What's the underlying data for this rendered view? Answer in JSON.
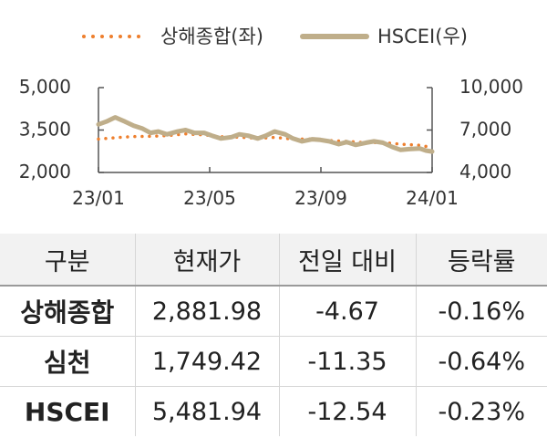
{
  "chart_data": {
    "type": "line",
    "legend": [
      "상해종합(좌)",
      "HSCEI(우)"
    ],
    "legend_position": "top",
    "x_ticks": [
      "23/01",
      "23/05",
      "23/09",
      "24/01"
    ],
    "x_range": [
      "2023-01-01",
      "2024-01-15"
    ],
    "y_left": {
      "ticks": [
        "2,000",
        "3,500",
        "5,000"
      ],
      "range": [
        2000,
        5000
      ]
    },
    "y_right": {
      "ticks": [
        "4,000",
        "7,000",
        "10,000"
      ],
      "range": [
        4000,
        10000
      ]
    },
    "series": [
      {
        "name": "상해종합(좌)",
        "axis": "left",
        "color": "#ee7f2d",
        "style": "dotted",
        "x": [
          "2023-01-01",
          "2023-01-20",
          "2023-02-10",
          "2023-03-01",
          "2023-03-20",
          "2023-04-10",
          "2023-05-01",
          "2023-05-20",
          "2023-06-10",
          "2023-07-01",
          "2023-07-20",
          "2023-08-10",
          "2023-09-01",
          "2023-09-20",
          "2023-10-10",
          "2023-11-01",
          "2023-11-20",
          "2023-12-10",
          "2024-01-01",
          "2024-01-15"
        ],
        "values": [
          3180,
          3230,
          3270,
          3280,
          3300,
          3360,
          3330,
          3260,
          3250,
          3210,
          3240,
          3180,
          3180,
          3130,
          3100,
          3050,
          3060,
          3000,
          2960,
          2880
        ]
      },
      {
        "name": "HSCEI(우)",
        "axis": "right",
        "color": "#bfae8a",
        "style": "solid",
        "x": [
          "2023-01-01",
          "2023-01-10",
          "2023-01-20",
          "2023-01-31",
          "2023-02-10",
          "2023-02-20",
          "2023-03-01",
          "2023-03-10",
          "2023-03-20",
          "2023-04-01",
          "2023-04-10",
          "2023-04-20",
          "2023-05-01",
          "2023-05-10",
          "2023-05-20",
          "2023-06-01",
          "2023-06-10",
          "2023-06-20",
          "2023-07-01",
          "2023-07-10",
          "2023-07-20",
          "2023-08-01",
          "2023-08-10",
          "2023-08-20",
          "2023-09-01",
          "2023-09-10",
          "2023-09-20",
          "2023-10-01",
          "2023-10-10",
          "2023-10-20",
          "2023-11-01",
          "2023-11-10",
          "2023-11-20",
          "2023-12-01",
          "2023-12-10",
          "2023-12-20",
          "2024-01-01",
          "2024-01-08",
          "2024-01-15"
        ],
        "values": [
          7400,
          7600,
          7900,
          7600,
          7300,
          7100,
          6800,
          6900,
          6700,
          6900,
          7000,
          6800,
          6800,
          6600,
          6400,
          6500,
          6700,
          6600,
          6400,
          6600,
          6900,
          6700,
          6400,
          6200,
          6350,
          6300,
          6200,
          6000,
          6150,
          5950,
          6100,
          6200,
          6100,
          5800,
          5600,
          5650,
          5700,
          5550,
          5480
        ]
      }
    ]
  },
  "table": {
    "headers": [
      "구분",
      "현재가",
      "전일 대비",
      "등락률"
    ],
    "rows": [
      [
        "상해종합",
        "2,881.98",
        "-4.67",
        "-0.16%"
      ],
      [
        "심천",
        "1,749.42",
        "-11.35",
        "-0.64%"
      ],
      [
        "HSCEI",
        "5,481.94",
        "-12.54",
        "-0.23%"
      ]
    ]
  }
}
